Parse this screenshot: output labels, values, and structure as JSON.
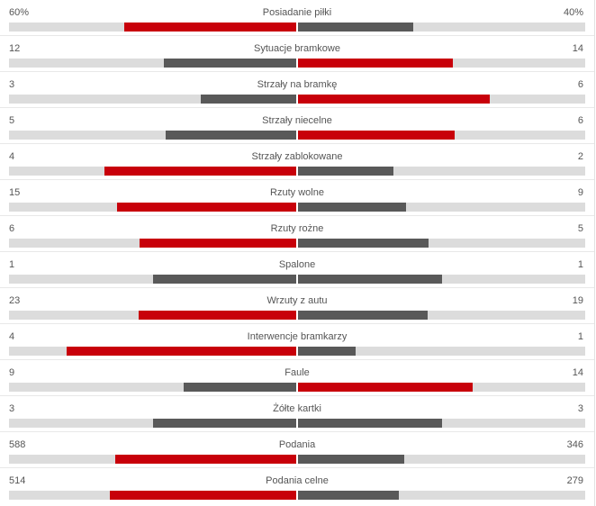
{
  "colors": {
    "leader": "#c8000a",
    "other": "#595959",
    "track": "#dcdcdc"
  },
  "stats": [
    {
      "label": "Posiadanie piłki",
      "home": "60%",
      "away": "40%",
      "home_value": 60,
      "away_value": 40,
      "home_fraction": 0.6,
      "away_fraction": 0.4
    },
    {
      "label": "Sytuacje bramkowe",
      "home": "12",
      "away": "14",
      "home_value": 12,
      "away_value": 14,
      "home_fraction": 0.462,
      "away_fraction": 0.538
    },
    {
      "label": "Strzały na bramkę",
      "home": "3",
      "away": "6",
      "home_value": 3,
      "away_value": 6,
      "home_fraction": 0.333,
      "away_fraction": 0.667
    },
    {
      "label": "Strzały niecelne",
      "home": "5",
      "away": "6",
      "home_value": 5,
      "away_value": 6,
      "home_fraction": 0.455,
      "away_fraction": 0.545
    },
    {
      "label": "Strzały zablokowane",
      "home": "4",
      "away": "2",
      "home_value": 4,
      "away_value": 2,
      "home_fraction": 0.667,
      "away_fraction": 0.333
    },
    {
      "label": "Rzuty wolne",
      "home": "15",
      "away": "9",
      "home_value": 15,
      "away_value": 9,
      "home_fraction": 0.625,
      "away_fraction": 0.375
    },
    {
      "label": "Rzuty rożne",
      "home": "6",
      "away": "5",
      "home_value": 6,
      "away_value": 5,
      "home_fraction": 0.545,
      "away_fraction": 0.455
    },
    {
      "label": "Spalone",
      "home": "1",
      "away": "1",
      "home_value": 1,
      "away_value": 1,
      "home_fraction": 0.5,
      "away_fraction": 0.5
    },
    {
      "label": "Wrzuty z autu",
      "home": "23",
      "away": "19",
      "home_value": 23,
      "away_value": 19,
      "home_fraction": 0.548,
      "away_fraction": 0.452
    },
    {
      "label": "Interwencje bramkarzy",
      "home": "4",
      "away": "1",
      "home_value": 4,
      "away_value": 1,
      "home_fraction": 0.8,
      "away_fraction": 0.2
    },
    {
      "label": "Faule",
      "home": "9",
      "away": "14",
      "home_value": 9,
      "away_value": 14,
      "home_fraction": 0.391,
      "away_fraction": 0.609
    },
    {
      "label": "Żółte kartki",
      "home": "3",
      "away": "3",
      "home_value": 3,
      "away_value": 3,
      "home_fraction": 0.5,
      "away_fraction": 0.5
    },
    {
      "label": "Podania",
      "home": "588",
      "away": "346",
      "home_value": 588,
      "away_value": 346,
      "home_fraction": 0.63,
      "away_fraction": 0.37
    },
    {
      "label": "Podania celne",
      "home": "514",
      "away": "279",
      "home_value": 514,
      "away_value": 279,
      "home_fraction": 0.648,
      "away_fraction": 0.352
    }
  ]
}
